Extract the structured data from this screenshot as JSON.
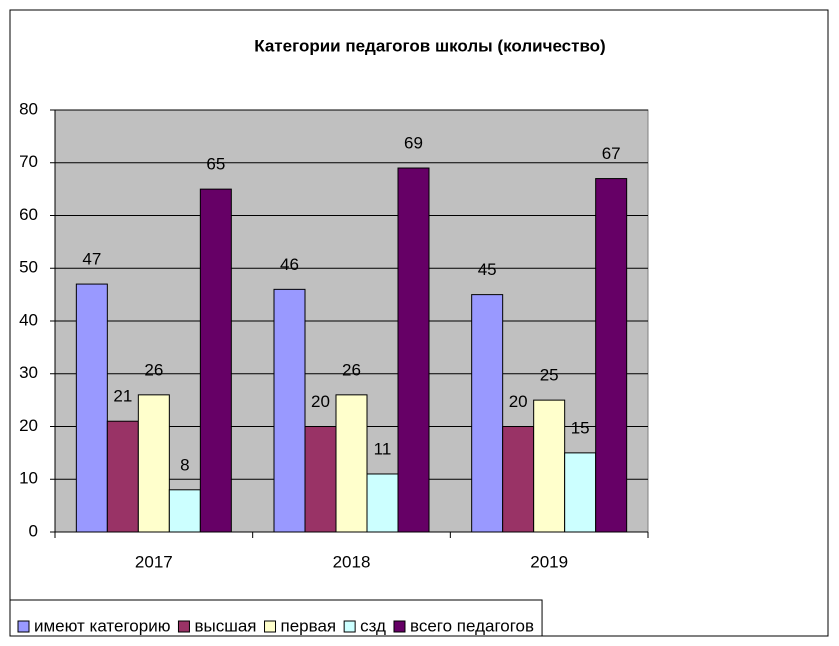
{
  "chart_data": {
    "type": "bar",
    "title": "Категории педагогов школы (количество)",
    "categories": [
      "2017",
      "2018",
      "2019"
    ],
    "series": [
      {
        "name": "имеют категорию",
        "color": "#9999ff",
        "values": [
          47,
          46,
          45
        ]
      },
      {
        "name": "высшая",
        "color": "#993366",
        "values": [
          21,
          20,
          20
        ]
      },
      {
        "name": "первая",
        "color": "#ffffcc",
        "values": [
          26,
          26,
          25
        ]
      },
      {
        "name": "сзд",
        "color": "#ccffff",
        "values": [
          8,
          11,
          15
        ]
      },
      {
        "name": "всего педагогов",
        "color": "#660066",
        "values": [
          65,
          69,
          67
        ]
      }
    ],
    "ylim": [
      0,
      80
    ],
    "yticks": [
      0,
      10,
      20,
      30,
      40,
      50,
      60,
      70,
      80
    ],
    "grid": true,
    "legend": "bottom-left"
  }
}
